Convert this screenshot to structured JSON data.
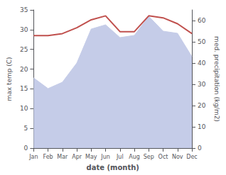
{
  "chart_data": {
    "type": "line",
    "xlabel": "date (month)",
    "ylabel": "max temp (C)",
    "y2label": "med. precipitation (kg/m2)",
    "categories": [
      "Jan",
      "Feb",
      "Mar",
      "Apr",
      "May",
      "Jun",
      "Jul",
      "Aug",
      "Sep",
      "Oct",
      "Nov",
      "Dec"
    ],
    "series": [
      {
        "type": "area",
        "axis": "y2",
        "color": "#c5cce8",
        "values": [
          33,
          28,
          31,
          40,
          56,
          58,
          52,
          53,
          62,
          55,
          54,
          43
        ]
      },
      {
        "type": "line",
        "color": "#c0504d",
        "values": [
          28.5,
          28.5,
          29.0,
          30.5,
          32.5,
          33.5,
          29.5,
          29.5,
          33.5,
          33.0,
          31.5,
          29.0
        ]
      }
    ],
    "ylim": [
      0,
      35
    ],
    "yticks": [
      0,
      5,
      10,
      15,
      20,
      25,
      30,
      35
    ],
    "y2lim": [
      0,
      65
    ],
    "y2ticks": [
      0,
      10,
      20,
      30,
      40,
      50,
      60
    ],
    "grid": false
  }
}
